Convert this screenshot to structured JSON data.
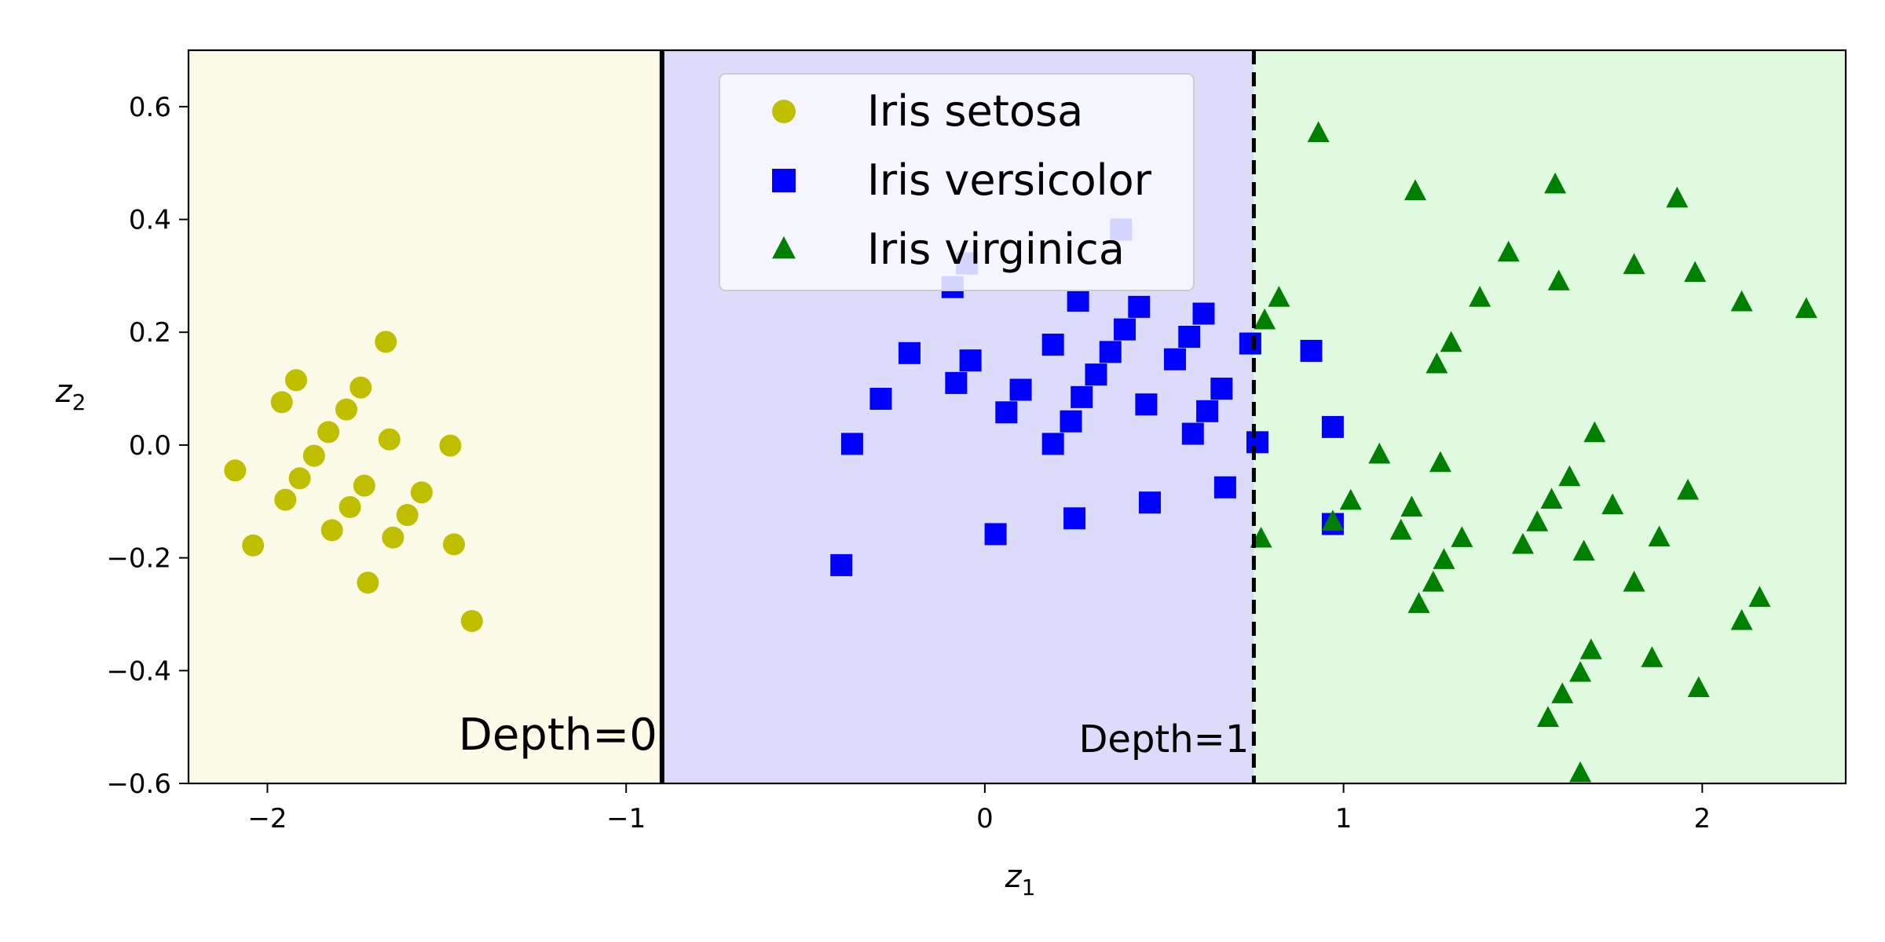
{
  "chart_data": {
    "type": "scatter",
    "xlabel": "z",
    "xlabel_sub": "1",
    "ylabel": "z",
    "ylabel_sub": "2",
    "xlim": [
      -2.22,
      2.4
    ],
    "ylim": [
      -0.6,
      0.7
    ],
    "xticks": [
      -2,
      -1,
      0,
      1,
      2
    ],
    "xtick_labels": [
      "−2",
      "−1",
      "0",
      "1",
      "2"
    ],
    "yticks": [
      -0.6,
      -0.4,
      -0.2,
      0.0,
      0.2,
      0.4,
      0.6
    ],
    "ytick_labels": [
      "−0.6",
      "−0.4",
      "−0.2",
      "0.0",
      "0.2",
      "0.4",
      "0.6"
    ],
    "grid": false,
    "legend_position": "top-center",
    "regions": [
      {
        "x_from": -2.22,
        "x_to": -0.9,
        "color": "#fafae6"
      },
      {
        "x_from": -0.9,
        "x_to": 0.75,
        "color": "#dcdcfa"
      },
      {
        "x_from": 0.75,
        "x_to": 2.4,
        "color": "#e0fae0"
      }
    ],
    "boundaries": [
      {
        "x": -0.9,
        "style": "solid",
        "label": "Depth=0",
        "label_anchor": "end"
      },
      {
        "x": 0.75,
        "style": "dashed",
        "label": "Depth=1",
        "label_anchor": "end"
      }
    ],
    "series": [
      {
        "name": "Iris setosa",
        "marker": "circle",
        "color": "#bfbf00",
        "points": [
          [
            -2.09,
            -0.045
          ],
          [
            -2.04,
            -0.178
          ],
          [
            -1.96,
            0.076
          ],
          [
            -1.95,
            -0.097
          ],
          [
            -1.92,
            0.115
          ],
          [
            -1.91,
            -0.059
          ],
          [
            -1.87,
            -0.019
          ],
          [
            -1.83,
            0.023
          ],
          [
            -1.82,
            -0.151
          ],
          [
            -1.78,
            0.063
          ],
          [
            -1.77,
            -0.11
          ],
          [
            -1.74,
            0.102
          ],
          [
            -1.73,
            -0.072
          ],
          [
            -1.72,
            -0.244
          ],
          [
            -1.67,
            0.183
          ],
          [
            -1.66,
            0.01
          ],
          [
            -1.65,
            -0.164
          ],
          [
            -1.61,
            -0.124
          ],
          [
            -1.57,
            -0.084
          ],
          [
            -1.49,
            -0.001
          ],
          [
            -1.48,
            -0.176
          ],
          [
            -1.43,
            -0.312
          ]
        ]
      },
      {
        "name": "Iris versicolor",
        "marker": "square",
        "color": "#0000ff",
        "points": [
          [
            -0.4,
            -0.213
          ],
          [
            -0.37,
            0.002
          ],
          [
            -0.29,
            0.082
          ],
          [
            -0.21,
            0.163
          ],
          [
            -0.08,
            0.11
          ],
          [
            -0.04,
            0.15
          ],
          [
            -0.09,
            0.28
          ],
          [
            -0.05,
            0.322
          ],
          [
            0.03,
            -0.158
          ],
          [
            0.06,
            0.058
          ],
          [
            0.1,
            0.098
          ],
          [
            0.19,
            0.178
          ],
          [
            0.19,
            0.002
          ],
          [
            0.24,
            0.042
          ],
          [
            0.25,
            -0.13
          ],
          [
            0.26,
            0.256
          ],
          [
            0.27,
            0.085
          ],
          [
            0.31,
            0.125
          ],
          [
            0.35,
            0.165
          ],
          [
            0.38,
            0.382
          ],
          [
            0.39,
            0.205
          ],
          [
            0.43,
            0.245
          ],
          [
            0.45,
            0.072
          ],
          [
            0.46,
            -0.102
          ],
          [
            0.53,
            0.152
          ],
          [
            0.57,
            0.192
          ],
          [
            0.58,
            0.02
          ],
          [
            0.61,
            0.233
          ],
          [
            0.62,
            0.06
          ],
          [
            0.66,
            0.1
          ],
          [
            0.67,
            -0.075
          ],
          [
            0.74,
            0.18
          ],
          [
            0.76,
            0.005
          ],
          [
            0.91,
            0.167
          ],
          [
            0.97,
            0.032
          ],
          [
            0.97,
            -0.14
          ]
        ]
      },
      {
        "name": "Iris virginica",
        "marker": "triangle",
        "color": "#008000",
        "points": [
          [
            0.77,
            -0.167
          ],
          [
            0.78,
            0.22
          ],
          [
            0.82,
            0.26
          ],
          [
            0.93,
            0.552
          ],
          [
            0.97,
            -0.137
          ],
          [
            1.02,
            -0.1
          ],
          [
            1.1,
            -0.018
          ],
          [
            1.16,
            -0.153
          ],
          [
            1.19,
            -0.112
          ],
          [
            1.2,
            0.449
          ],
          [
            1.21,
            -0.283
          ],
          [
            1.25,
            -0.245
          ],
          [
            1.26,
            0.142
          ],
          [
            1.27,
            -0.033
          ],
          [
            1.28,
            -0.205
          ],
          [
            1.3,
            0.18
          ],
          [
            1.33,
            -0.166
          ],
          [
            1.38,
            0.26
          ],
          [
            1.46,
            0.34
          ],
          [
            1.5,
            -0.178
          ],
          [
            1.54,
            -0.138
          ],
          [
            1.57,
            -0.485
          ],
          [
            1.58,
            -0.098
          ],
          [
            1.59,
            0.461
          ],
          [
            1.6,
            0.289
          ],
          [
            1.61,
            -0.443
          ],
          [
            1.63,
            -0.058
          ],
          [
            1.66,
            -0.405
          ],
          [
            1.66,
            -0.583
          ],
          [
            1.67,
            -0.19
          ],
          [
            1.69,
            -0.365
          ],
          [
            1.7,
            0.02
          ],
          [
            1.75,
            -0.108
          ],
          [
            1.81,
            0.318
          ],
          [
            1.81,
            -0.245
          ],
          [
            1.86,
            -0.379
          ],
          [
            1.88,
            -0.165
          ],
          [
            1.93,
            0.436
          ],
          [
            1.96,
            -0.082
          ],
          [
            1.98,
            0.304
          ],
          [
            1.99,
            -0.432
          ],
          [
            2.11,
            0.252
          ],
          [
            2.11,
            -0.313
          ],
          [
            2.16,
            -0.272
          ],
          [
            2.29,
            0.24
          ]
        ]
      }
    ]
  }
}
